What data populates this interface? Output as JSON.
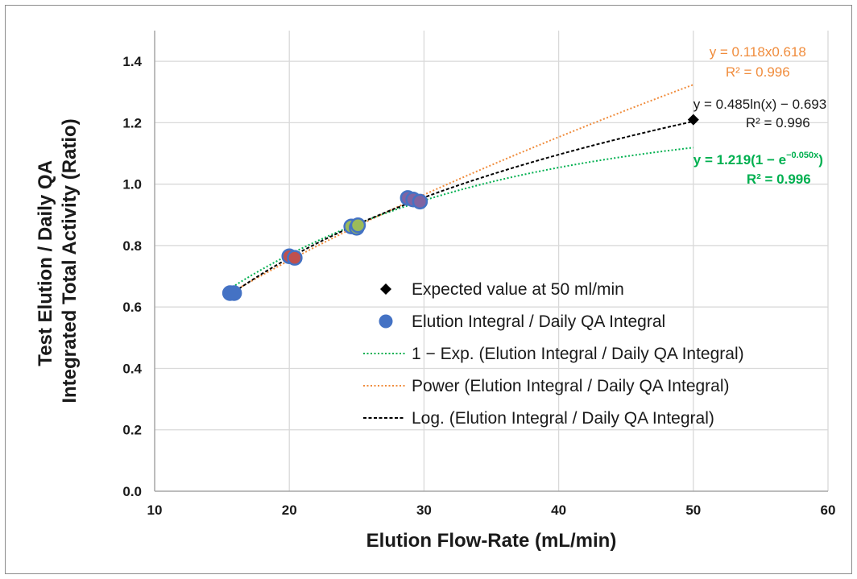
{
  "chart_data": {
    "type": "scatter",
    "xlabel": "Elution Flow-Rate (mL/min)",
    "ylabel_lines": [
      "Test Elution / Daily QA",
      "Integrated Total Activity (Ratio)"
    ],
    "xlim": [
      10,
      60
    ],
    "ylim": [
      0,
      1.5
    ],
    "xticks": [
      10,
      20,
      30,
      40,
      50,
      60
    ],
    "yticks": [
      0.0,
      0.2,
      0.4,
      0.6,
      0.8,
      1.0,
      1.2,
      1.4
    ],
    "xtick_labels": [
      "10",
      "20",
      "30",
      "40",
      "50",
      "60"
    ],
    "ytick_labels": [
      "0.0",
      "0.2",
      "0.4",
      "0.6",
      "0.8",
      "1.0",
      "1.2",
      "1.4"
    ],
    "grid": true,
    "legend_position": "center-right",
    "points": [
      {
        "x": 15.6,
        "y": 0.645,
        "color": "#4472c4"
      },
      {
        "x": 15.9,
        "y": 0.645,
        "color": "#4472c4"
      },
      {
        "x": 20.0,
        "y": 0.765,
        "color": "#c0504d"
      },
      {
        "x": 20.4,
        "y": 0.76,
        "color": "#c0504d"
      },
      {
        "x": 24.6,
        "y": 0.862,
        "color": "#9bbb59"
      },
      {
        "x": 25.0,
        "y": 0.858,
        "color": "#9bbb59"
      },
      {
        "x": 25.1,
        "y": 0.866,
        "color": "#9bbb59"
      },
      {
        "x": 28.8,
        "y": 0.955,
        "color": "#8064a2"
      },
      {
        "x": 29.2,
        "y": 0.95,
        "color": "#8064a2"
      },
      {
        "x": 29.7,
        "y": 0.943,
        "color": "#8064a2"
      }
    ],
    "expected_point": {
      "x": 50,
      "y": 1.21
    },
    "legend": [
      {
        "label": "Expected value at 50 ml/min",
        "marker": "diamond",
        "color": "#000000"
      },
      {
        "label": "Elution Integral / Daily QA Integral",
        "marker": "circle",
        "color": "#4472c4"
      },
      {
        "label": "1 − Exp. (Elution Integral / Daily QA Integral)",
        "marker": "dotted",
        "color": "#00b050"
      },
      {
        "label": "Power (Elution Integral / Daily QA Integral)",
        "marker": "dotted",
        "color": "#f08c3c"
      },
      {
        "label": "Log. (Elution Integral / Daily QA Integral)",
        "marker": "dashed",
        "color": "#000000"
      }
    ],
    "fits": [
      {
        "kind": "exp",
        "a": 1.219,
        "b": 0.05,
        "x_range": [
          15.3,
          50
        ],
        "color": "#00b050"
      },
      {
        "kind": "power",
        "a": 0.118,
        "b": 0.618,
        "x_range": [
          15.3,
          50
        ],
        "color": "#f08c3c"
      },
      {
        "kind": "log",
        "a": 0.485,
        "b": 0.693,
        "x_range": [
          15.3,
          50
        ],
        "color": "#000000"
      }
    ],
    "annotations": {
      "power": {
        "eq": "y = 0.118x0.618",
        "r2": "R² = 0.996",
        "color": "#f08c3c"
      },
      "log": {
        "eq": "y = 0.485ln(x) − 0.693",
        "r2": "R² = 0.996",
        "color": "#1a1a1a"
      },
      "exp": {
        "eq_prefix": "y = 1.219(1 − e",
        "eq_sup": "−0.050x",
        "eq_suffix": ")",
        "r2": "R² = 0.996",
        "color": "#00b050"
      }
    }
  }
}
